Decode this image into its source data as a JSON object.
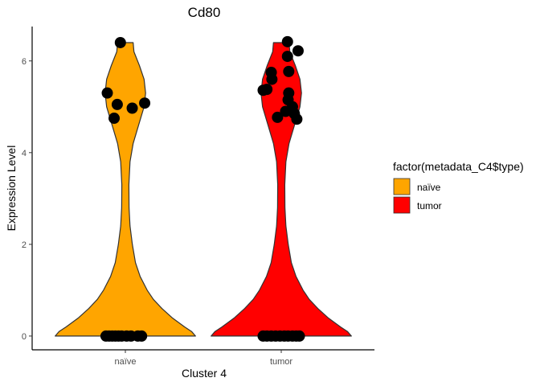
{
  "chart_data": {
    "type": "violin",
    "title": "Cd80",
    "xlabel": "Cluster 4",
    "ylabel": "Expression Level",
    "categories": [
      "naïve",
      "tumor"
    ],
    "ylim": [
      -0.3,
      6.75
    ],
    "yticks": [
      0,
      2,
      4,
      6
    ],
    "ytick_labels": [
      "0",
      "2",
      "4",
      "6"
    ],
    "grid": false,
    "legend": {
      "title": "factor(metadata_C4$type)",
      "placement": "right",
      "entries": [
        {
          "label": "naïve",
          "color": "#FFA500"
        },
        {
          "label": "tumor",
          "color": "#FF0000"
        }
      ]
    },
    "violin_max": 6.4,
    "series": [
      {
        "category": "naïve",
        "color": "#FFA500",
        "points": [
          {
            "jitter": -0.08,
            "y": 6.4
          },
          {
            "jitter": -0.29,
            "y": 5.3
          },
          {
            "jitter": -0.13,
            "y": 5.05
          },
          {
            "jitter": 0.11,
            "y": 4.97
          },
          {
            "jitter": 0.31,
            "y": 5.08
          },
          {
            "jitter": -0.18,
            "y": 4.75
          },
          {
            "jitter": -0.31,
            "y": 0
          },
          {
            "jitter": -0.26,
            "y": 0
          },
          {
            "jitter": -0.21,
            "y": 0
          },
          {
            "jitter": -0.16,
            "y": 0
          },
          {
            "jitter": -0.11,
            "y": 0
          },
          {
            "jitter": -0.06,
            "y": 0
          },
          {
            "jitter": 0.02,
            "y": 0
          },
          {
            "jitter": 0.09,
            "y": 0
          },
          {
            "jitter": 0.2,
            "y": 0
          },
          {
            "jitter": 0.26,
            "y": 0
          }
        ]
      },
      {
        "category": "tumor",
        "color": "#FF0000",
        "points": [
          {
            "jitter": 0.1,
            "y": 6.42
          },
          {
            "jitter": 0.27,
            "y": 6.22
          },
          {
            "jitter": 0.1,
            "y": 6.1
          },
          {
            "jitter": -0.16,
            "y": 5.75
          },
          {
            "jitter": 0.12,
            "y": 5.77
          },
          {
            "jitter": -0.15,
            "y": 5.6
          },
          {
            "jitter": -0.29,
            "y": 5.36
          },
          {
            "jitter": -0.23,
            "y": 5.38
          },
          {
            "jitter": 0.12,
            "y": 5.3
          },
          {
            "jitter": 0.11,
            "y": 5.15
          },
          {
            "jitter": 0.18,
            "y": 5.0
          },
          {
            "jitter": 0.07,
            "y": 4.9
          },
          {
            "jitter": 0.21,
            "y": 4.85
          },
          {
            "jitter": -0.06,
            "y": 4.77
          },
          {
            "jitter": 0.25,
            "y": 4.73
          },
          {
            "jitter": -0.29,
            "y": 0
          },
          {
            "jitter": -0.23,
            "y": 0
          },
          {
            "jitter": -0.16,
            "y": 0
          },
          {
            "jitter": -0.09,
            "y": 0
          },
          {
            "jitter": -0.02,
            "y": 0
          },
          {
            "jitter": 0.05,
            "y": 0
          },
          {
            "jitter": 0.11,
            "y": 0
          },
          {
            "jitter": 0.18,
            "y": 0
          },
          {
            "jitter": 0.24,
            "y": 0
          },
          {
            "jitter": 0.29,
            "y": 0
          }
        ]
      }
    ]
  }
}
